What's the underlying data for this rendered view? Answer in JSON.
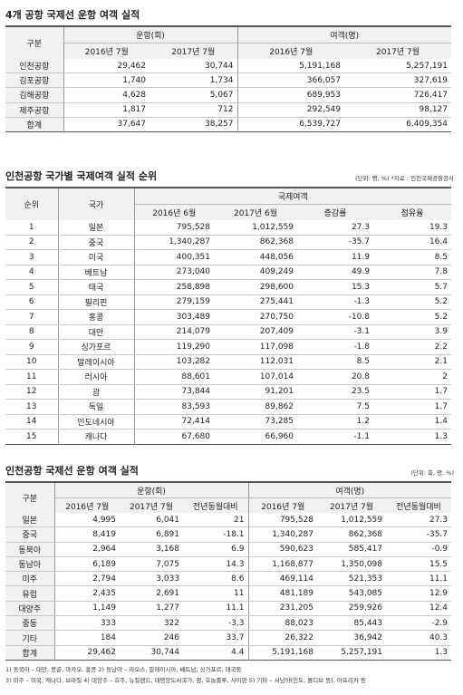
{
  "table1": {
    "title": "4개 공항 국제선 운항 여객 실적",
    "group_label": "구분",
    "group_ops": "운항(회)",
    "group_pax": "여객(명)",
    "col_2016": "2016년 7월",
    "col_2017": "2017년 7월",
    "rows": [
      {
        "name": "인천공항",
        "ops2016": "29,462",
        "ops2017": "30,744",
        "pax2016": "5,191,168",
        "pax2017": "5,257,191"
      },
      {
        "name": "김포공항",
        "ops2016": "1,740",
        "ops2017": "1,734",
        "pax2016": "366,057",
        "pax2017": "327,619"
      },
      {
        "name": "김해공항",
        "ops2016": "4,628",
        "ops2017": "5,067",
        "pax2016": "689,953",
        "pax2017": "726,417"
      },
      {
        "name": "제주공항",
        "ops2016": "1,817",
        "ops2017": "712",
        "pax2016": "292,549",
        "pax2017": "98,127"
      }
    ],
    "total": {
      "name": "합계",
      "ops2016": "37,647",
      "ops2017": "38,257",
      "pax2016": "6,539,727",
      "pax2017": "6,409,354"
    }
  },
  "table2": {
    "title": "인천공항 국가별 국제여객 실적 순위",
    "note": "(단위: 명, %) *자료 : 인천국제공항공사",
    "h_rank": "순위",
    "h_country": "국가",
    "h_group": "국제여객",
    "h_2016": "2016년 6월",
    "h_2017": "2017년 6월",
    "h_growth": "증감률",
    "h_share": "점유율",
    "rows": [
      {
        "rank": "1",
        "country": "일본",
        "v2016": "795,528",
        "v2017": "1,012,559",
        "growth": "27.3",
        "share": "19.3"
      },
      {
        "rank": "2",
        "country": "중국",
        "v2016": "1,340,287",
        "v2017": "862,368",
        "growth": "-35.7",
        "share": "16.4"
      },
      {
        "rank": "3",
        "country": "미국",
        "v2016": "400,351",
        "v2017": "448,056",
        "growth": "11.9",
        "share": "8.5"
      },
      {
        "rank": "4",
        "country": "베트남",
        "v2016": "273,040",
        "v2017": "409,249",
        "growth": "49.9",
        "share": "7.8"
      },
      {
        "rank": "5",
        "country": "태국",
        "v2016": "258,898",
        "v2017": "298,600",
        "growth": "15.3",
        "share": "5.7"
      },
      {
        "rank": "6",
        "country": "필리핀",
        "v2016": "279,159",
        "v2017": "275,441",
        "growth": "-1.3",
        "share": "5.2"
      },
      {
        "rank": "7",
        "country": "홍콩",
        "v2016": "303,489",
        "v2017": "270,750",
        "growth": "-10.8",
        "share": "5.2"
      },
      {
        "rank": "8",
        "country": "대만",
        "v2016": "214,079",
        "v2017": "207,409",
        "growth": "-3.1",
        "share": "3.9"
      },
      {
        "rank": "9",
        "country": "싱가포르",
        "v2016": "119,290",
        "v2017": "117,098",
        "growth": "-1.8",
        "share": "2.2"
      },
      {
        "rank": "10",
        "country": "말레이시아",
        "v2016": "103,282",
        "v2017": "112,031",
        "growth": "8.5",
        "share": "2.1"
      },
      {
        "rank": "11",
        "country": "러시아",
        "v2016": "88,601",
        "v2017": "107,014",
        "growth": "20.8",
        "share": "2"
      },
      {
        "rank": "12",
        "country": "괌",
        "v2016": "73,844",
        "v2017": "91,201",
        "growth": "23.5",
        "share": "1.7"
      },
      {
        "rank": "13",
        "country": "독일",
        "v2016": "83,593",
        "v2017": "89,862",
        "growth": "7.5",
        "share": "1.7"
      },
      {
        "rank": "14",
        "country": "인도네시아",
        "v2016": "72,414",
        "v2017": "73,285",
        "growth": "1.2",
        "share": "1.4"
      },
      {
        "rank": "15",
        "country": "캐나다",
        "v2016": "67,680",
        "v2017": "66,960",
        "growth": "-1.1",
        "share": "1.3"
      }
    ]
  },
  "table3": {
    "title": "인천공항 국제선 운항 여객 실적",
    "note": "(단위: 회, 명, %)",
    "group_label": "구분",
    "group_ops": "운항(회)",
    "group_pax": "여객(명)",
    "col_2016": "2016년 7월",
    "col_2017": "2017년 7월",
    "col_yoy": "전년동월대비",
    "rows": [
      {
        "name": "일본",
        "ops2016": "4,995",
        "ops2017": "6,041",
        "opsYoy": "21",
        "pax2016": "795,528",
        "pax2017": "1,012,559",
        "paxYoy": "27.3"
      },
      {
        "name": "중국",
        "ops2016": "8,419",
        "ops2017": "6,891",
        "opsYoy": "-18.1",
        "pax2016": "1,340,287",
        "pax2017": "862,368",
        "paxYoy": "-35.7"
      },
      {
        "name": "동북아",
        "ops2016": "2,964",
        "ops2017": "3,168",
        "opsYoy": "6.9",
        "pax2016": "590,623",
        "pax2017": "585,417",
        "paxYoy": "-0.9"
      },
      {
        "name": "동남아",
        "ops2016": "6,189",
        "ops2017": "7,075",
        "opsYoy": "14.3",
        "pax2016": "1,168,877",
        "pax2017": "1,350,098",
        "paxYoy": "15.5"
      },
      {
        "name": "미주",
        "ops2016": "2,794",
        "ops2017": "3,033",
        "opsYoy": "8.6",
        "pax2016": "469,114",
        "pax2017": "521,353",
        "paxYoy": "11.1"
      },
      {
        "name": "유럽",
        "ops2016": "2,435",
        "ops2017": "2,691",
        "opsYoy": "11",
        "pax2016": "481,189",
        "pax2017": "543,085",
        "paxYoy": "12.9"
      },
      {
        "name": "대양주",
        "ops2016": "1,149",
        "ops2017": "1,277",
        "opsYoy": "11.1",
        "pax2016": "231,205",
        "pax2017": "259,926",
        "paxYoy": "12.4"
      },
      {
        "name": "중동",
        "ops2016": "333",
        "ops2017": "322",
        "opsYoy": "-3.3",
        "pax2016": "88,023",
        "pax2017": "85,443",
        "paxYoy": "-2.9"
      },
      {
        "name": "기타",
        "ops2016": "184",
        "ops2017": "246",
        "opsYoy": "33.7",
        "pax2016": "26,322",
        "pax2017": "36,942",
        "paxYoy": "40.3"
      }
    ],
    "total": {
      "name": "합계",
      "ops2016": "29,462",
      "ops2017": "30,744",
      "opsYoy": "4.4",
      "pax2016": "5,191,168",
      "pax2017": "5,257,191",
      "paxYoy": "1.3"
    },
    "footnote1": "1) 동북아 – 대만, 몽골, 마카오, 홍콩  2) 동남아 – 라오스, 말레이시아, 베트남, 싱가포르, 태국등",
    "footnote2": "3) 미주 – 미국, 캐나다, 브라질  4) 대양주 – 호주, 뉴질랜드, 태평양도서국가, 괌, 호놀룰루, 사이판  5) 기타 – 서남아(인도, 몰디브 등), 아프리카 등"
  }
}
